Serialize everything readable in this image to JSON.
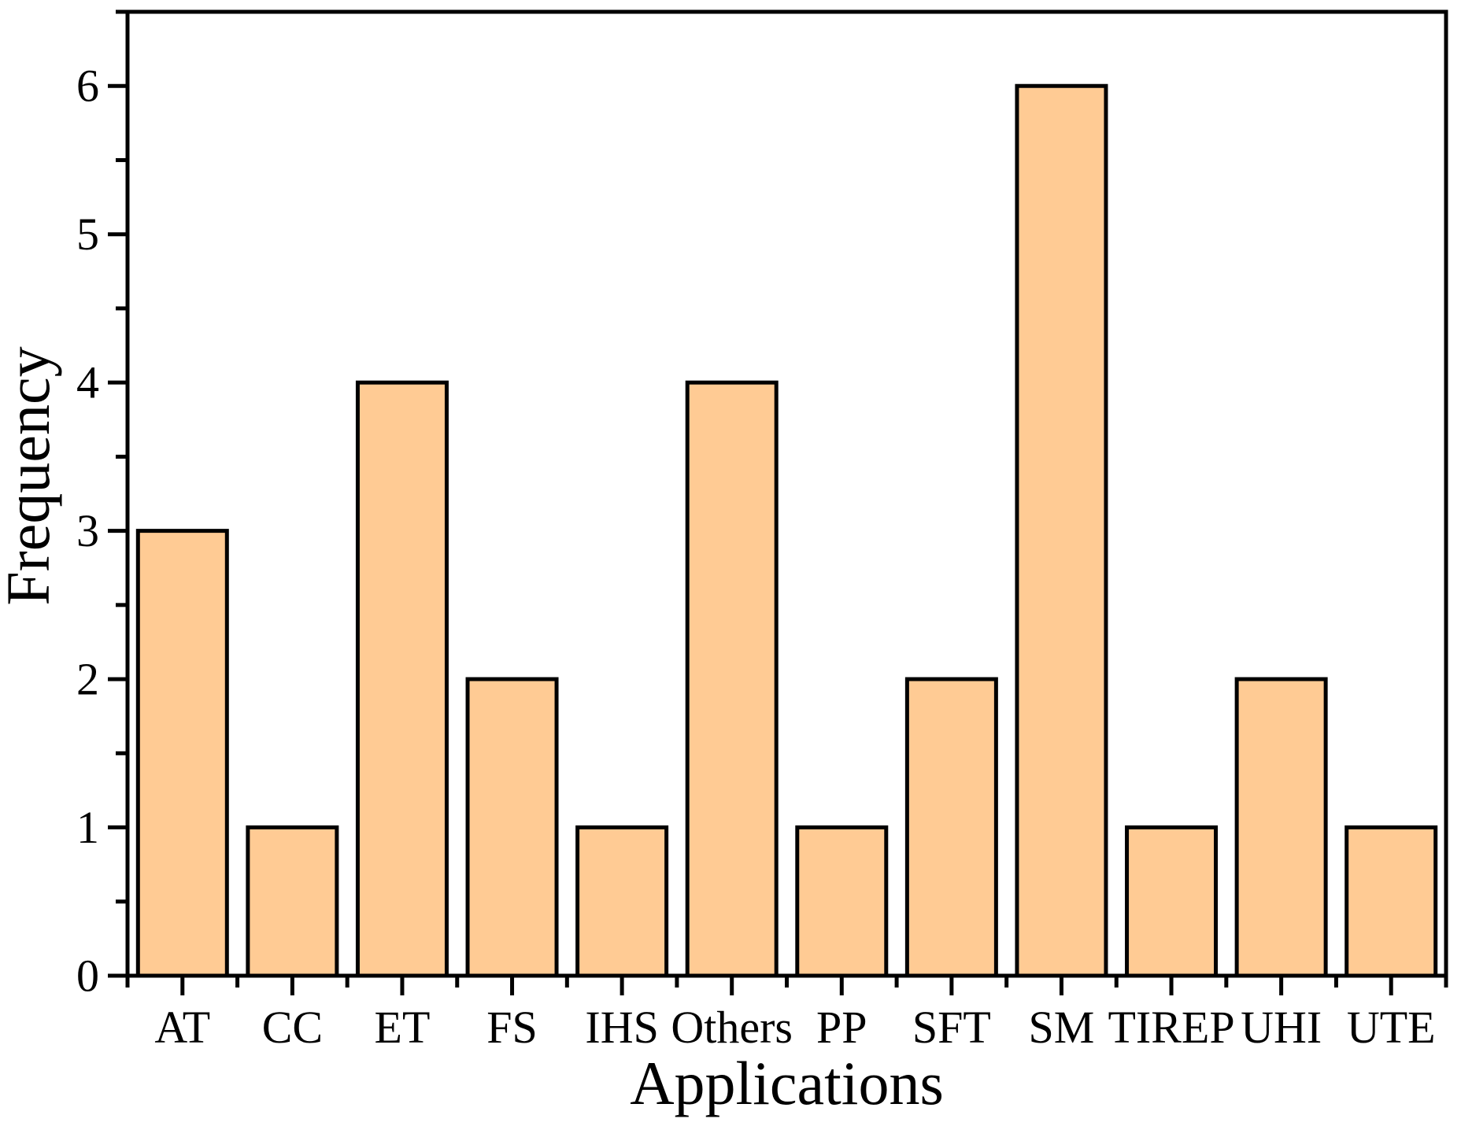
{
  "chart_data": {
    "type": "bar",
    "title": "",
    "xlabel": "Applications",
    "ylabel": "Frequency",
    "categories": [
      "AT",
      "CC",
      "ET",
      "FS",
      "IHS",
      "Others",
      "PP",
      "SFT",
      "SM",
      "TIREP",
      "UHI",
      "UTE"
    ],
    "values": [
      3,
      1,
      4,
      2,
      1,
      4,
      1,
      2,
      6,
      1,
      2,
      1
    ],
    "yticks": [
      0,
      1,
      2,
      3,
      4,
      5,
      6
    ],
    "ylim": [
      0,
      6.5
    ],
    "minor_ytick_step": 0.5,
    "grid": false,
    "legend": null,
    "bar_fill": "#ffcb94",
    "bar_edge": "#000000",
    "axis_color": "#000000",
    "background": "#ffffff"
  }
}
